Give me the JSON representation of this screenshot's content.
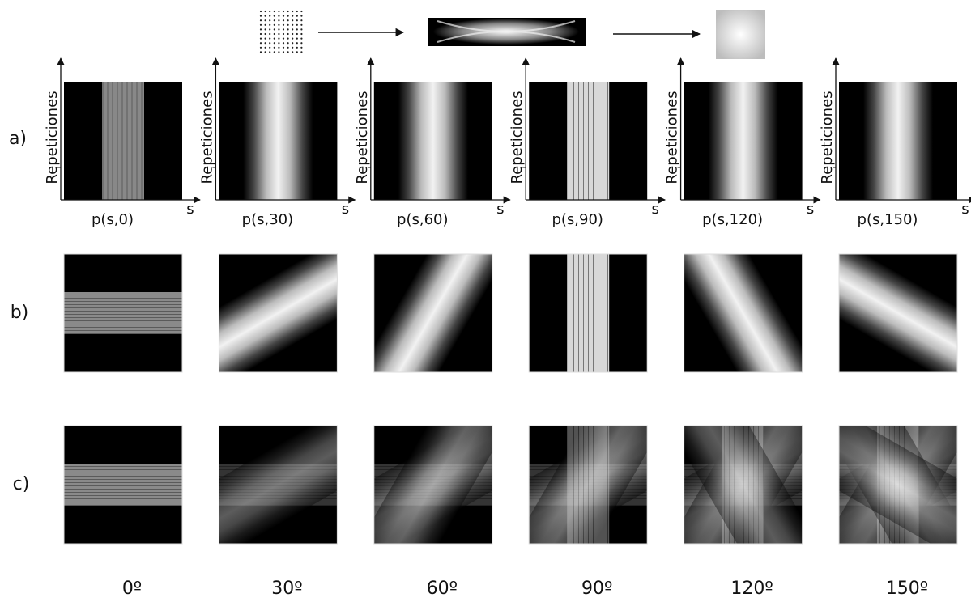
{
  "rows": [
    {
      "label": "a)"
    },
    {
      "label": "b)"
    },
    {
      "label": "c)"
    }
  ],
  "panels": [
    {
      "y_axis": "Repeticiones",
      "x_axis": "s",
      "projection": "p(s,0)",
      "angle": "0º"
    },
    {
      "y_axis": "Repeticiones",
      "x_axis": "s",
      "projection": "p(s,30)",
      "angle": "30º"
    },
    {
      "y_axis": "Repeticiones",
      "x_axis": "s",
      "projection": "p(s,60)",
      "angle": "60º"
    },
    {
      "y_axis": "Repeticiones",
      "x_axis": "s",
      "projection": "p(s,90)",
      "angle": "90º"
    },
    {
      "y_axis": "Repeticiones",
      "x_axis": "s",
      "projection": "p(s,120)",
      "angle": "120º"
    },
    {
      "y_axis": "Repeticiones",
      "x_axis": "s",
      "projection": "p(s,150)",
      "angle": "150º"
    }
  ]
}
